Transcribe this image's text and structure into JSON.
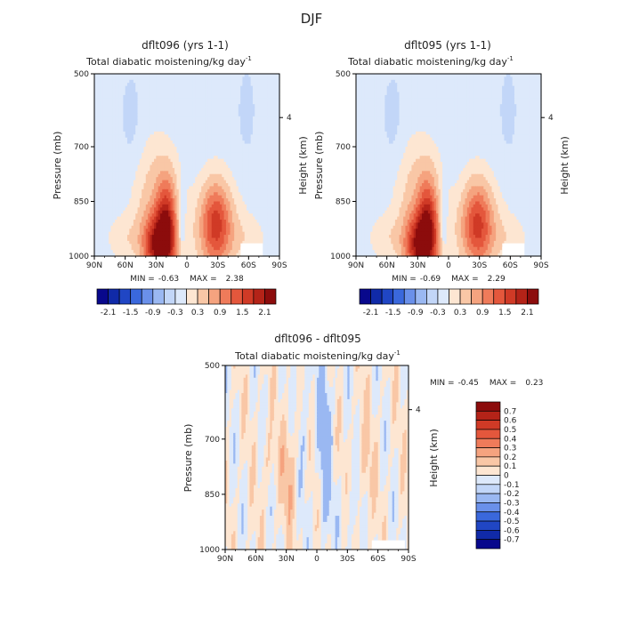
{
  "page_title": "DJF",
  "common": {
    "subtitle": "Total diabatic moistening/kg day",
    "subtitle_exp": "-1",
    "ylabel": "Pressure (mb)",
    "y2label": "Height (km)",
    "y2tick": "4",
    "yticks": [
      "500",
      "700",
      "850",
      "1000"
    ],
    "xticks": [
      "90N",
      "60N",
      "30N",
      "0",
      "30S",
      "60S",
      "90S"
    ]
  },
  "chart_data": [
    {
      "type": "heatmap",
      "id": "panel_left",
      "title": "dflt096 (yrs 1-1)",
      "min_label": "MIN =",
      "min_value": "-0.63",
      "max_label": "MAX =",
      "max_value": "2.38",
      "xlim": [
        90,
        -90
      ],
      "ylim": [
        500,
        1000
      ],
      "colorbar_labels": [
        "-2.1",
        "-1.5",
        "-0.9",
        "-0.3",
        "0.3",
        "0.9",
        "1.5",
        "2.1"
      ]
    },
    {
      "type": "heatmap",
      "id": "panel_right",
      "title": "dflt095 (yrs 1-1)",
      "min_label": "MIN =",
      "min_value": "-0.69",
      "max_label": "MAX =",
      "max_value": "2.29",
      "xlim": [
        90,
        -90
      ],
      "ylim": [
        500,
        1000
      ],
      "colorbar_labels": [
        "-2.1",
        "-1.5",
        "-0.9",
        "-0.3",
        "0.3",
        "0.9",
        "1.5",
        "2.1"
      ]
    },
    {
      "type": "heatmap",
      "id": "panel_diff",
      "title": "dflt096 - dflt095",
      "min_label": "MIN =",
      "min_value": "-0.45",
      "max_label": "MAX =",
      "max_value": "0.23",
      "xlim": [
        90,
        -90
      ],
      "ylim": [
        500,
        1000
      ],
      "colorbar_labels": [
        "0.7",
        "0.6",
        "0.5",
        "0.4",
        "0.3",
        "0.2",
        "0.1",
        "0",
        "-0.1",
        "-0.2",
        "-0.3",
        "-0.4",
        "-0.5",
        "-0.6",
        "-0.7"
      ]
    }
  ],
  "colors": {
    "blues": [
      "#08088c",
      "#102aa8",
      "#2046c4",
      "#3a68dc",
      "#6a90ea",
      "#9ab8f2",
      "#c2d6f8",
      "#dde9fb"
    ],
    "reds": [
      "#fde6d2",
      "#f9c7a6",
      "#f5a37f",
      "#ef7b5a",
      "#e4573c",
      "#d03a26",
      "#b42318",
      "#8c0c0c"
    ],
    "diff_bar": [
      "#8c0c0c",
      "#b42318",
      "#d03a26",
      "#e4573c",
      "#ef7b5a",
      "#f5a37f",
      "#f9c7a6",
      "#fde6d2",
      "#dde9fb",
      "#c2d6f8",
      "#9ab8f2",
      "#6a90ea",
      "#3a68dc",
      "#2046c4",
      "#102aa8",
      "#08088c"
    ]
  }
}
